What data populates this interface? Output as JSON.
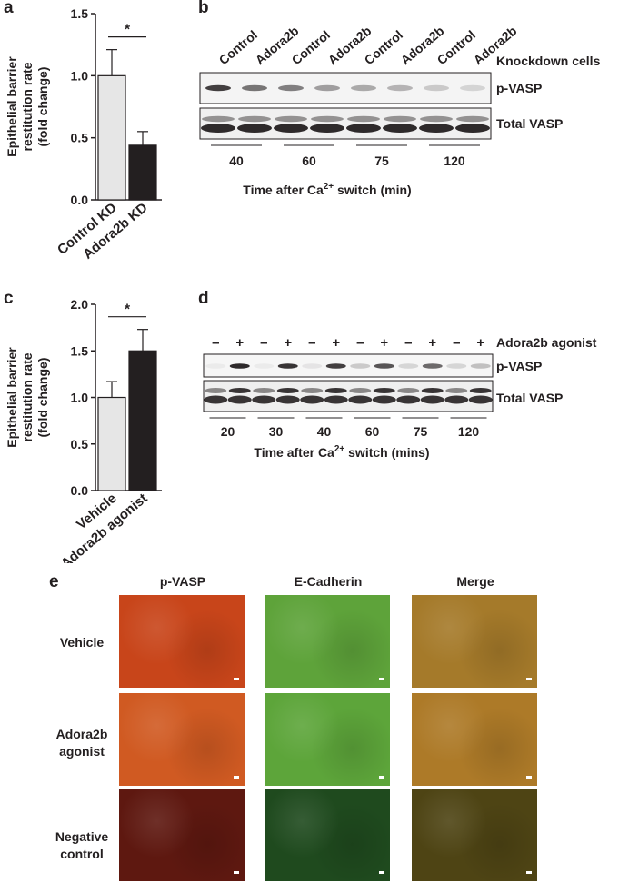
{
  "panels": {
    "a": {
      "letter": "a",
      "ylabel_lines": [
        "Epithelial barrier",
        "restitution rate",
        "(fold change)"
      ],
      "significance": "*"
    },
    "b": {
      "letter": "b",
      "lane_labels": [
        "Control",
        "Adora2b",
        "Control",
        "Adora2b",
        "Control",
        "Adora2b",
        "Control",
        "Adora2b"
      ],
      "group_header": "Knockdown cells",
      "row_labels": [
        "p-VASP",
        "Total VASP"
      ],
      "time_labels": [
        "40",
        "60",
        "75",
        "120"
      ],
      "xlabel_prefix": "Time after Ca",
      "xlabel_sup": "2+",
      "xlabel_suffix": " switch (min)"
    },
    "c": {
      "letter": "c",
      "ylabel_lines": [
        "Epithelial barrier",
        "restitution rate",
        "(fold change)"
      ],
      "significance": "*"
    },
    "d": {
      "letter": "d",
      "lane_signs": [
        "–",
        "+",
        "–",
        "+",
        "–",
        "+",
        "–",
        "+",
        "–",
        "+",
        "–",
        "+"
      ],
      "treatment_label": "Adora2b agonist",
      "row_labels": [
        "p-VASP",
        "Total VASP"
      ],
      "time_labels": [
        "20",
        "30",
        "40",
        "60",
        "75",
        "120"
      ],
      "xlabel_prefix": "Time after Ca",
      "xlabel_sup": "2+",
      "xlabel_suffix": " switch (mins)"
    },
    "e": {
      "letter": "e",
      "column_titles": [
        "p-VASP",
        "E-Cadherin",
        "Merge"
      ],
      "row_titles": [
        "Vehicle",
        "Adora2b agonist",
        "Negative control"
      ],
      "tile_colors": [
        [
          "#c8451a",
          "#5ea33a",
          "#a57a2a"
        ],
        [
          "#d05a22",
          "#5da53a",
          "#ad7a28"
        ],
        [
          "#5e1810",
          "#1f4a1e",
          "#4e4414"
        ]
      ]
    }
  },
  "chart_data": [
    {
      "type": "bar",
      "panel": "a",
      "categories": [
        "Control KD",
        "Adora2b KD"
      ],
      "values": [
        1.0,
        0.44
      ],
      "errors": [
        0.21,
        0.11
      ],
      "colors": [
        "#e6e6e6",
        "#231f20"
      ],
      "ylabel": "Epithelial barrier restitution rate (fold change)",
      "ylim": [
        0.0,
        1.5
      ],
      "yticks": [
        0.0,
        0.5,
        1.0,
        1.5
      ],
      "ytick_labels": [
        "0.0",
        "0.5",
        "1.0",
        "1.5"
      ]
    },
    {
      "type": "bar",
      "panel": "c",
      "categories": [
        "Vehicle",
        "Adora2b agonist"
      ],
      "values": [
        1.0,
        1.5
      ],
      "errors": [
        0.17,
        0.23
      ],
      "colors": [
        "#e6e6e6",
        "#231f20"
      ],
      "ylabel": "Epithelial barrier restitution rate (fold change)",
      "ylim": [
        0.0,
        2.0
      ],
      "yticks": [
        0.0,
        0.5,
        1.0,
        1.5,
        2.0
      ],
      "ytick_labels": [
        "0.0",
        "0.5",
        "1.0",
        "1.5",
        "2.0"
      ]
    }
  ]
}
